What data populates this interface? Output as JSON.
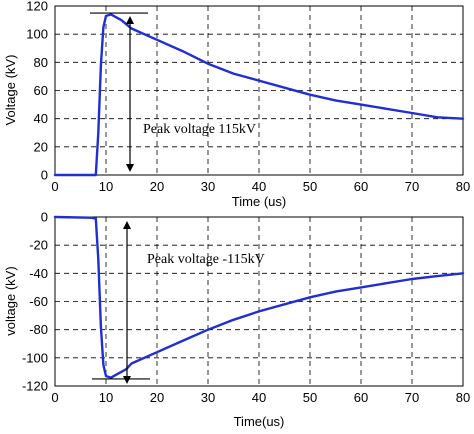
{
  "chart_data": [
    {
      "type": "line",
      "xlabel": "Time (us)",
      "ylabel": "Voltage (kV)",
      "xlim": [
        0,
        80
      ],
      "ylim": [
        0,
        120
      ],
      "xticks": [
        "0",
        "10",
        "20",
        "30",
        "40",
        "50",
        "60",
        "70",
        "80"
      ],
      "yticks": [
        "0",
        "20",
        "40",
        "60",
        "80",
        "100",
        "120"
      ],
      "grid": true,
      "line_color": "#1f2fd1",
      "annotation": "Peak voltage 115kV",
      "peak": 115,
      "series": [
        {
          "x": [
            0,
            8,
            8.5,
            9,
            9.5,
            10,
            11,
            12,
            13,
            14,
            15,
            20,
            25,
            30,
            35,
            40,
            45,
            50,
            55,
            60,
            65,
            70,
            75,
            80
          ],
          "y": [
            0,
            0,
            30,
            78,
            105,
            113,
            114,
            112,
            110,
            107,
            104,
            96,
            88,
            79,
            72,
            67,
            62,
            57,
            53,
            50,
            47,
            44,
            41,
            40
          ]
        }
      ]
    },
    {
      "type": "line",
      "xlabel": "Time(us)",
      "ylabel": "voltage (kV)",
      "xlim": [
        0,
        80
      ],
      "ylim": [
        -120,
        0
      ],
      "xticks": [
        "0",
        "10",
        "20",
        "30",
        "40",
        "50",
        "60",
        "70",
        "80"
      ],
      "yticks": [
        "0",
        "-20",
        "-40",
        "-60",
        "-80",
        "-100",
        "-120"
      ],
      "grid": true,
      "line_color": "#1f2fd1",
      "annotation": "Peak voltage -115kV",
      "peak": -115,
      "series": [
        {
          "x": [
            0,
            7,
            8,
            8.5,
            9,
            9.5,
            10,
            11,
            12,
            13,
            14,
            15,
            20,
            25,
            30,
            35,
            40,
            45,
            50,
            55,
            60,
            65,
            70,
            75,
            80
          ],
          "y": [
            0,
            -0.5,
            -1,
            -30,
            -78,
            -105,
            -113,
            -114,
            -112,
            -110,
            -108,
            -104,
            -96,
            -88,
            -80,
            -73,
            -67,
            -62,
            -57,
            -53,
            -50,
            -47,
            -44,
            -42,
            -40
          ]
        }
      ]
    }
  ]
}
